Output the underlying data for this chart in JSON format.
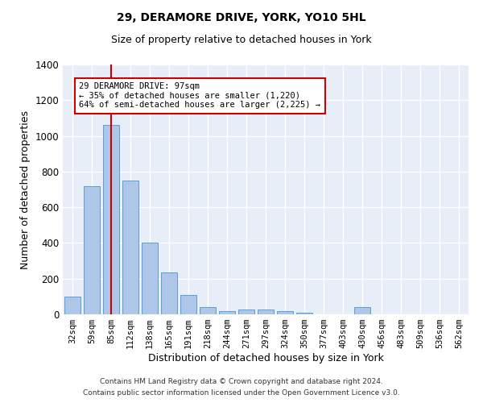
{
  "title": "29, DERAMORE DRIVE, YORK, YO10 5HL",
  "subtitle": "Size of property relative to detached houses in York",
  "xlabel": "Distribution of detached houses by size in York",
  "ylabel": "Number of detached properties",
  "footer1": "Contains HM Land Registry data © Crown copyright and database right 2024.",
  "footer2": "Contains public sector information licensed under the Open Government Licence v3.0.",
  "annotation_title": "29 DERAMORE DRIVE: 97sqm",
  "annotation_line2": "← 35% of detached houses are smaller (1,220)",
  "annotation_line3": "64% of semi-detached houses are larger (2,225) →",
  "categories": [
    "32sqm",
    "59sqm",
    "85sqm",
    "112sqm",
    "138sqm",
    "165sqm",
    "191sqm",
    "218sqm",
    "244sqm",
    "271sqm",
    "297sqm",
    "324sqm",
    "350sqm",
    "377sqm",
    "403sqm",
    "430sqm",
    "456sqm",
    "483sqm",
    "509sqm",
    "536sqm",
    "562sqm"
  ],
  "values": [
    100,
    720,
    1060,
    750,
    400,
    235,
    110,
    40,
    20,
    25,
    25,
    20,
    10,
    0,
    0,
    40,
    0,
    0,
    0,
    0,
    0
  ],
  "bar_color": "#aec6e8",
  "bar_edge_color": "#5a9fd4",
  "marker_color": "#cc0000",
  "background_color": "#e8eef8",
  "ylim": [
    0,
    1400
  ],
  "yticks": [
    0,
    200,
    400,
    600,
    800,
    1000,
    1200,
    1400
  ],
  "annotation_box_color": "#cc0000",
  "title_fontsize": 10,
  "subtitle_fontsize": 9
}
